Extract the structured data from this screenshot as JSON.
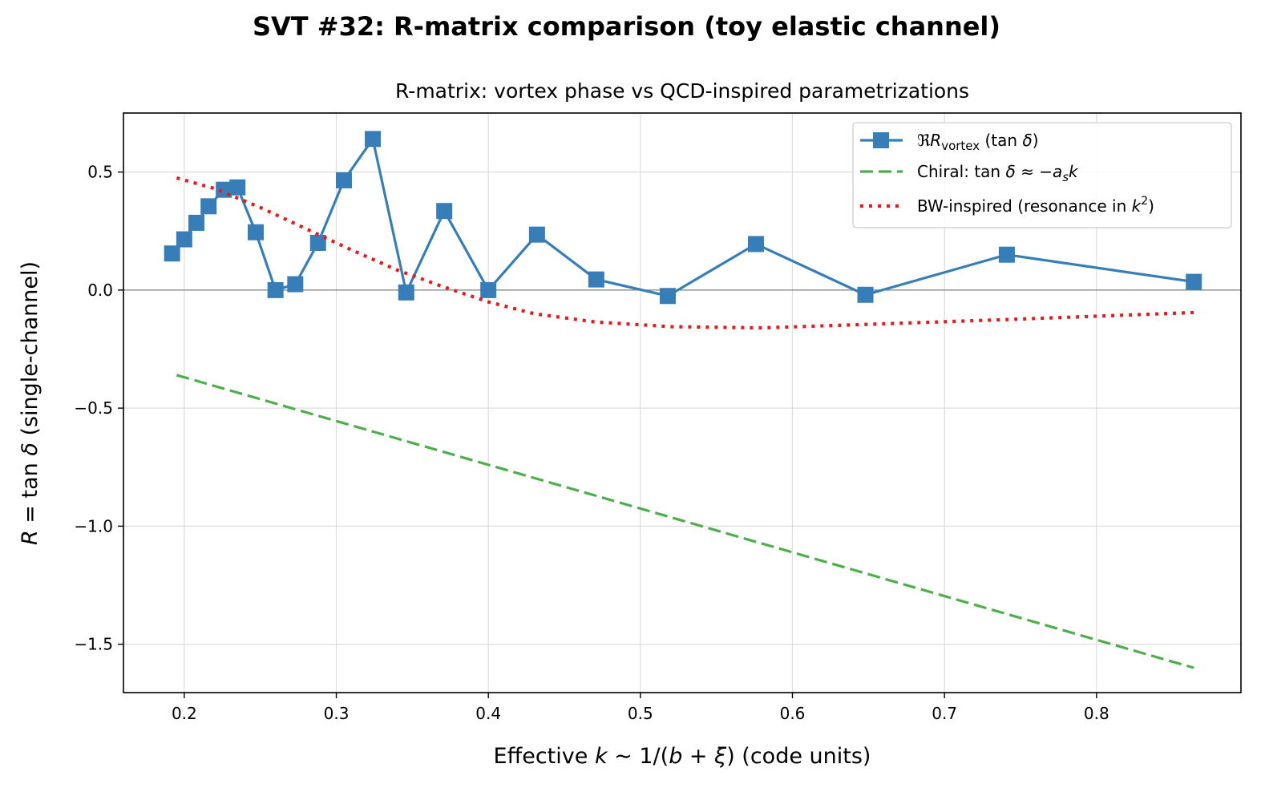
{
  "figure_title": "SVT #32: R-matrix comparison (toy elastic channel)",
  "colors": {
    "vortex": "#377eb8",
    "chiral": "#4daf4a",
    "bw": "#e41a1c",
    "grid": "#dddddd",
    "zero_line": "#808080"
  },
  "chart_data": {
    "type": "line",
    "title": "R-matrix: vortex phase vs QCD-inspired parametrizations",
    "xlabel_parts": [
      "Effective ",
      "k",
      " ∼ 1/(",
      "b",
      " + ",
      "ξ",
      ")  (code units)"
    ],
    "ylabel_parts": [
      "R",
      " = tan ",
      "δ",
      "  (single-channel)"
    ],
    "xlim": [
      0.16,
      0.895
    ],
    "ylim": [
      -1.705,
      0.75
    ],
    "xticks": [
      0.2,
      0.3,
      0.4,
      0.5,
      0.6,
      0.7,
      0.8
    ],
    "xtick_labels": [
      "0.2",
      "0.3",
      "0.4",
      "0.5",
      "0.6",
      "0.7",
      "0.8"
    ],
    "yticks": [
      0.5,
      0.0,
      -0.5,
      -1.0,
      -1.5
    ],
    "ytick_labels": [
      "0.5",
      "0.0",
      "−0.5",
      "−1.0",
      "−1.5"
    ],
    "grid": true,
    "zero_line": true,
    "legend_position": "top-right",
    "series": [
      {
        "name_parts": [
          "ℜ",
          "R",
          "vortex",
          "  (tan ",
          "δ",
          ")"
        ],
        "style": "solid-square",
        "x": [
          0.192,
          0.2,
          0.208,
          0.216,
          0.226,
          0.235,
          0.247,
          0.26,
          0.273,
          0.288,
          0.305,
          0.324,
          0.346,
          0.371,
          0.4,
          0.432,
          0.471,
          0.518,
          0.576,
          0.648,
          0.741,
          0.864
        ],
        "y": [
          0.155,
          0.215,
          0.285,
          0.355,
          0.425,
          0.435,
          0.245,
          0.0,
          0.025,
          0.2,
          0.465,
          0.64,
          -0.01,
          0.335,
          0.0,
          0.235,
          0.045,
          -0.025,
          0.195,
          -0.02,
          0.15,
          0.035
        ]
      },
      {
        "name_parts": [
          "Chiral: tan ",
          "δ",
          " ≈ −",
          "a",
          "s",
          "k"
        ],
        "style": "dashed",
        "x": [
          0.195,
          0.864
        ],
        "y": [
          -0.36,
          -1.6
        ]
      },
      {
        "name_parts": [
          "BW-inspired  (resonance in ",
          "k",
          "2",
          ")"
        ],
        "style": "dotted",
        "x": [
          0.195,
          0.22,
          0.25,
          0.28,
          0.31,
          0.34,
          0.37,
          0.4,
          0.43,
          0.47,
          0.52,
          0.58,
          0.65,
          0.74,
          0.864
        ],
        "y": [
          0.475,
          0.43,
          0.35,
          0.26,
          0.17,
          0.085,
          0.015,
          -0.05,
          -0.1,
          -0.135,
          -0.155,
          -0.16,
          -0.145,
          -0.125,
          -0.095
        ]
      }
    ]
  }
}
